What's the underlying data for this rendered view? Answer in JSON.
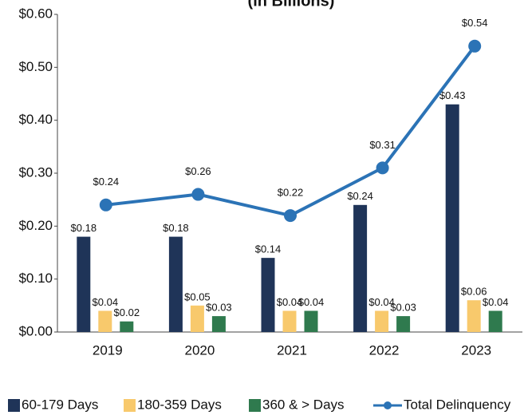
{
  "chart_data": {
    "type": "bar_line",
    "subtitle": "(in Billions)",
    "categories": [
      "2019",
      "2020",
      "2021",
      "2022",
      "2023"
    ],
    "series": [
      {
        "name": "60-179 Days",
        "type": "bar",
        "color": "#1f3458",
        "values": [
          0.18,
          0.18,
          0.14,
          0.24,
          0.43
        ],
        "value_labels": [
          "$0.18",
          "$0.18",
          "$0.14",
          "$0.24",
          "$0.43"
        ]
      },
      {
        "name": "180-359 Days",
        "type": "bar",
        "color": "#f8c96c",
        "values": [
          0.04,
          0.05,
          0.04,
          0.04,
          0.06
        ],
        "value_labels": [
          "$0.04",
          "$0.05",
          "$0.04",
          "$0.04",
          "$0.06"
        ]
      },
      {
        "name": "360 & > Days",
        "type": "bar",
        "color": "#2f7a4e",
        "values": [
          0.02,
          0.03,
          0.04,
          0.03,
          0.04
        ],
        "value_labels": [
          "$0.02",
          "$0.03",
          "$0.04",
          "$0.03",
          "$0.04"
        ]
      },
      {
        "name": "Total Delinquency",
        "type": "line",
        "color": "#2b73b6",
        "values": [
          0.24,
          0.26,
          0.22,
          0.31,
          0.54
        ],
        "value_labels": [
          "$0.24",
          "$0.26",
          "$0.22",
          "$0.31",
          "$0.54"
        ]
      }
    ],
    "ylim": [
      0,
      0.6
    ],
    "yticks": [
      {
        "value": 0,
        "label": "$0.00"
      },
      {
        "value": 0.1,
        "label": "$0.10"
      },
      {
        "value": 0.2,
        "label": "$0.20"
      },
      {
        "value": 0.3,
        "label": "$0.30"
      },
      {
        "value": 0.4,
        "label": "$0.40"
      },
      {
        "value": 0.5,
        "label": "$0.50"
      },
      {
        "value": 0.6,
        "label": "$0.60"
      }
    ],
    "legend": "bottom"
  }
}
